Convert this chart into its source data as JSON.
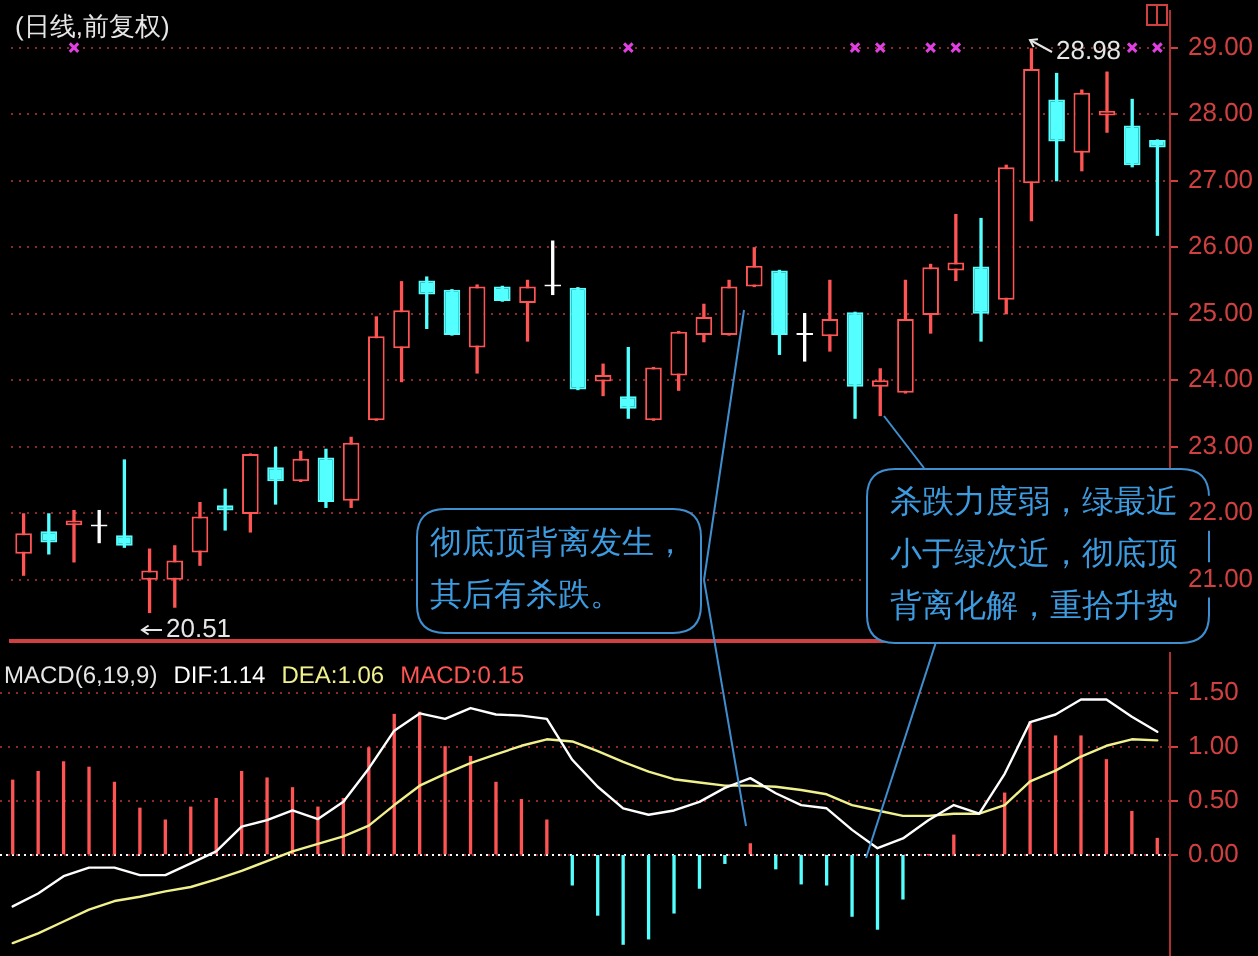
{
  "chart_data": [
    {
      "type": "candlestick",
      "title": "(日线,前复权)",
      "categories": [
        null,
        null,
        null,
        null,
        null,
        null,
        null,
        null,
        null,
        null,
        null,
        null,
        null,
        null,
        null,
        null,
        null,
        null,
        null,
        null,
        null,
        null,
        null,
        null,
        null,
        null,
        null,
        null,
        null,
        null,
        null,
        null,
        null,
        null,
        null,
        null,
        null,
        null,
        null,
        null,
        null,
        null,
        null,
        null,
        null,
        null
      ],
      "ohlc": [
        [
          21.39,
          21.99,
          21.07,
          21.7
        ],
        [
          21.73,
          21.99,
          21.39,
          21.56
        ],
        [
          21.82,
          22.04,
          21.27,
          21.89
        ],
        [
          21.8,
          22.04,
          21.56,
          21.8
        ],
        [
          21.67,
          22.8,
          21.49,
          21.51
        ],
        [
          21.0,
          21.46,
          20.51,
          21.14
        ],
        [
          21.0,
          21.51,
          20.59,
          21.29
        ],
        [
          21.41,
          22.16,
          21.22,
          21.95
        ],
        [
          22.12,
          22.36,
          21.75,
          22.04
        ],
        [
          21.99,
          22.89,
          21.72,
          22.89
        ],
        [
          22.69,
          22.99,
          22.14,
          22.48
        ],
        [
          22.48,
          22.93,
          22.48,
          22.82
        ],
        [
          22.84,
          22.96,
          22.09,
          22.17
        ],
        [
          22.19,
          23.14,
          22.09,
          23.06
        ],
        [
          23.4,
          24.95,
          23.4,
          24.66
        ],
        [
          24.48,
          25.48,
          23.98,
          25.05
        ],
        [
          25.5,
          25.55,
          24.78,
          25.29
        ],
        [
          25.36,
          25.36,
          24.68,
          24.68
        ],
        [
          24.49,
          25.43,
          24.11,
          25.41
        ],
        [
          25.41,
          25.41,
          25.19,
          25.19
        ],
        [
          25.16,
          25.5,
          24.59,
          25.41
        ],
        [
          25.41,
          26.09,
          25.29,
          25.41
        ],
        [
          25.39,
          25.39,
          23.86,
          23.86
        ],
        [
          23.98,
          24.24,
          23.77,
          24.08
        ],
        [
          23.76,
          24.49,
          23.43,
          23.57
        ],
        [
          23.4,
          24.19,
          23.4,
          24.19
        ],
        [
          24.07,
          24.73,
          23.85,
          24.73
        ],
        [
          24.68,
          25.14,
          24.58,
          24.95
        ],
        [
          24.68,
          25.5,
          24.68,
          25.41
        ],
        [
          25.41,
          25.99,
          25.41,
          25.72
        ],
        [
          25.65,
          25.65,
          24.39,
          24.68
        ],
        [
          24.68,
          25.0,
          24.29,
          24.68
        ],
        [
          24.66,
          25.5,
          24.44,
          24.92
        ],
        [
          25.02,
          25.02,
          23.43,
          23.9
        ],
        [
          23.9,
          24.17,
          23.47,
          24.0
        ],
        [
          23.81,
          25.5,
          23.81,
          24.92
        ],
        [
          24.98,
          25.74,
          24.71,
          25.7
        ],
        [
          25.65,
          26.49,
          25.5,
          25.77
        ],
        [
          25.71,
          26.43,
          24.59,
          25.0
        ],
        [
          25.21,
          27.23,
          25.0,
          27.2
        ],
        [
          26.96,
          28.98,
          26.4,
          28.68
        ],
        [
          28.22,
          28.61,
          27.0,
          27.59
        ],
        [
          27.42,
          28.36,
          27.15,
          28.32
        ],
        [
          27.98,
          28.63,
          27.73,
          28.05
        ],
        [
          27.83,
          28.22,
          27.21,
          27.23
        ],
        [
          27.61,
          27.61,
          26.18,
          27.5
        ]
      ],
      "colors": [
        "#ff5454",
        "#54ffff",
        "#ff5454",
        "#ffffff",
        "#54ffff",
        "#ff5454",
        "#ff5454",
        "#ff5454",
        "#54ffff",
        "#ff5454",
        "#54ffff",
        "#ff5454",
        "#54ffff",
        "#ff5454",
        "#ff5454",
        "#ff5454",
        "#54ffff",
        "#54ffff",
        "#ff5454",
        "#54ffff",
        "#ff5454",
        "#ffffff",
        "#54ffff",
        "#ff5454",
        "#54ffff",
        "#ff5454",
        "#ff5454",
        "#ff5454",
        "#ff5454",
        "#ff5454",
        "#54ffff",
        "#ffffff",
        "#ff5454",
        "#54ffff",
        "#ff5454",
        "#ff5454",
        "#ff5454",
        "#ff5454",
        "#54ffff",
        "#ff5454",
        "#ff5454",
        "#54ffff",
        "#ff5454",
        "#ff5454",
        "#54ffff",
        "#54ffff"
      ],
      "series": [
        {
          "type": "scatter",
          "color": "#e040e0",
          "marker": "cross",
          "values": [
            null,
            null,
            29,
            null,
            null,
            null,
            null,
            null,
            null,
            null,
            null,
            null,
            null,
            null,
            null,
            null,
            null,
            null,
            null,
            null,
            null,
            null,
            null,
            null,
            29,
            null,
            null,
            null,
            null,
            null,
            null,
            null,
            null,
            29,
            29,
            null,
            29,
            29,
            null,
            null,
            null,
            null,
            null,
            null,
            29,
            29
          ]
        }
      ],
      "ylim": [
        20.08,
        29.55
      ],
      "yticks": [
        {
          "value": 21,
          "label": "21.00"
        },
        {
          "value": 22,
          "label": "22.00"
        },
        {
          "value": 23,
          "label": "23.00"
        },
        {
          "value": 24,
          "label": "24.00"
        },
        {
          "value": 25,
          "label": "25.00"
        },
        {
          "value": 26,
          "label": "26.00"
        },
        {
          "value": 27,
          "label": "27.00"
        },
        {
          "value": 28,
          "label": "28.00"
        },
        {
          "value": 29,
          "label": "29.00"
        }
      ],
      "grid": "y",
      "tick_labels": "y",
      "annotations": [
        "彻底顶背离发生，其后有杀跌。",
        "杀跌力度弱，绿最近小于绿次近，彻底顶背离化解，重拾升势",
        "20.51",
        "28.98"
      ]
    },
    {
      "type": "line",
      "title": "MACD(6,19,9)",
      "categories": [
        null,
        null,
        null,
        null,
        null,
        null,
        null,
        null,
        null,
        null,
        null,
        null,
        null,
        null,
        null,
        null,
        null,
        null,
        null,
        null,
        null,
        null,
        null,
        null,
        null,
        null,
        null,
        null,
        null,
        null,
        null,
        null,
        null,
        null,
        null,
        null,
        null,
        null,
        null,
        null,
        null,
        null,
        null,
        null,
        null,
        null
      ],
      "series": [
        {
          "name": "DIF:1.14",
          "color": "#ffffff",
          "values": [
            -0.48,
            -0.36,
            -0.2,
            -0.12,
            -0.12,
            -0.19,
            -0.19,
            -0.08,
            0.03,
            0.26,
            0.32,
            0.41,
            0.33,
            0.49,
            0.8,
            1.15,
            1.31,
            1.26,
            1.36,
            1.3,
            1.29,
            1.26,
            0.88,
            0.63,
            0.43,
            0.37,
            0.41,
            0.49,
            0.62,
            0.71,
            0.57,
            0.46,
            0.43,
            0.23,
            0.06,
            0.15,
            0.32,
            0.46,
            0.38,
            0.75,
            1.23,
            1.3,
            1.44,
            1.44,
            1.28,
            1.14
          ]
        },
        {
          "name": "DEA:1.06",
          "color": "#f0f08c",
          "values": [
            -0.82,
            -0.73,
            -0.62,
            -0.51,
            -0.43,
            -0.39,
            -0.34,
            -0.3,
            -0.23,
            -0.15,
            -0.06,
            0.03,
            0.1,
            0.17,
            0.27,
            0.46,
            0.64,
            0.75,
            0.85,
            0.93,
            1.01,
            1.07,
            1.05,
            0.96,
            0.86,
            0.77,
            0.7,
            0.67,
            0.64,
            0.64,
            0.63,
            0.6,
            0.56,
            0.46,
            0.41,
            0.36,
            0.36,
            0.38,
            0.38,
            0.46,
            0.68,
            0.78,
            0.91,
            1.01,
            1.07,
            1.06
          ]
        },
        {
          "name": "MACD:0.15",
          "type": "bar",
          "colors": [
            "#ff5454",
            "#ff5454",
            "#ff5454",
            "#ff5454",
            "#ff5454",
            "#ff5454",
            "#ff5454",
            "#ff5454",
            "#ff5454",
            "#ff5454",
            "#ff5454",
            "#ff5454",
            "#ff5454",
            "#ff5454",
            "#ff5454",
            "#ff5454",
            "#ff5454",
            "#ff5454",
            "#ff5454",
            "#ff5454",
            "#ff5454",
            "#ff5454",
            "#54ffff",
            "#54ffff",
            "#54ffff",
            "#54ffff",
            "#54ffff",
            "#54ffff",
            "#54ffff",
            "#ff5454",
            "#54ffff",
            "#54ffff",
            "#54ffff",
            "#54ffff",
            "#54ffff",
            "#54ffff",
            "#ff5454",
            "#ff5454",
            "#ff5454",
            "#ff5454",
            "#ff5454",
            "#ff5454",
            "#ff5454",
            "#ff5454",
            "#ff5454",
            "#ff5454"
          ],
          "values": [
            0.69,
            0.77,
            0.86,
            0.81,
            0.67,
            0.43,
            0.32,
            0.44,
            0.52,
            0.77,
            0.71,
            0.62,
            0.44,
            0.52,
            0.99,
            1.3,
            1.32,
            1.0,
            0.91,
            0.67,
            0.51,
            0.32,
            -0.28,
            -0.56,
            -0.83,
            -0.78,
            -0.54,
            -0.31,
            -0.08,
            0.1,
            -0.13,
            -0.27,
            -0.28,
            -0.57,
            -0.69,
            -0.41,
            0,
            0.18,
            0,
            0.57,
            1.23,
            1.1,
            1.1,
            0.88,
            0.4,
            0.15
          ]
        }
      ],
      "ylim": [
        -0.94,
        1.88
      ],
      "yticks": [
        {
          "value": 0,
          "label": "0.00"
        },
        {
          "value": 0.5,
          "label": "0.50"
        },
        {
          "value": 1,
          "label": "1.00"
        },
        {
          "value": 1.5,
          "label": "1.50"
        }
      ],
      "grid": "y",
      "tick_labels": "y",
      "ref_lines": [
        {
          "axis": "y",
          "value": 0,
          "color": "#ffffff",
          "line_style": "dotted"
        }
      ]
    }
  ]
}
